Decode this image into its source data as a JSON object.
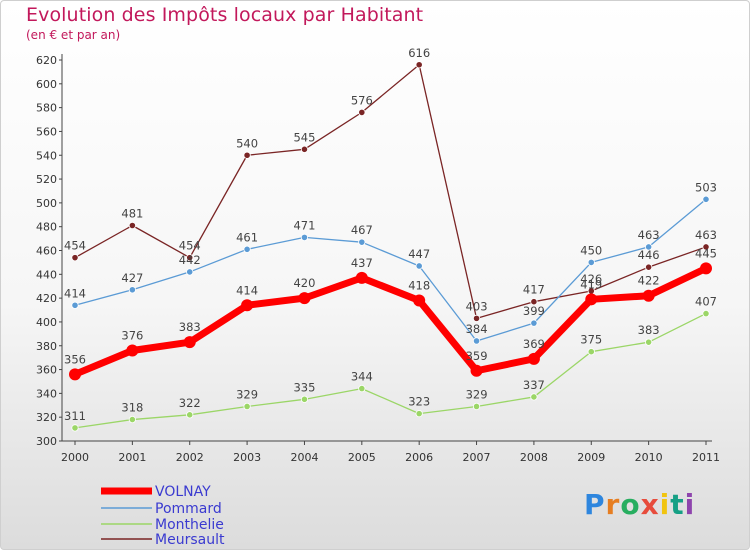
{
  "header": {
    "title": "Evolution des Impôts locaux par Habitant",
    "subtitle": "(en € et par an)"
  },
  "chart_data": {
    "type": "line",
    "x": [
      "2000",
      "2001",
      "2002",
      "2003",
      "2004",
      "2005",
      "2006",
      "2007",
      "2008",
      "2009",
      "2010",
      "2011"
    ],
    "ylim": [
      300,
      620
    ],
    "yticks": [
      300,
      320,
      340,
      360,
      380,
      400,
      420,
      440,
      460,
      480,
      500,
      520,
      540,
      560,
      580,
      600,
      620
    ],
    "grid": false,
    "legend": "bottom-left",
    "series": [
      {
        "name": "VOLNAY",
        "color": "#ff0000",
        "values": [
          356,
          376,
          383,
          414,
          420,
          437,
          418,
          359,
          369,
          419,
          422,
          445
        ],
        "labels": [
          "356",
          "376",
          "383",
          "414",
          "420",
          "437",
          "418",
          "359",
          "369",
          "419",
          "422",
          "445"
        ]
      },
      {
        "name": "Pommard",
        "color": "#5b9bd5",
        "values": [
          414,
          427,
          442,
          461,
          471,
          467,
          447,
          384,
          399,
          450,
          463,
          503
        ],
        "labels": [
          "414",
          "427",
          "442",
          "461",
          "471",
          "467",
          "447",
          "384",
          "399",
          "450",
          "463",
          "503"
        ]
      },
      {
        "name": "Monthelie",
        "color": "#9bd667",
        "values": [
          311,
          318,
          322,
          329,
          335,
          344,
          323,
          329,
          337,
          375,
          383,
          407
        ],
        "labels": [
          "311",
          "318",
          "322",
          "329",
          "335",
          "344",
          "323",
          "329",
          "337",
          "375",
          "383",
          "407"
        ]
      },
      {
        "name": "Meursault",
        "color": "#7a2525",
        "values": [
          454,
          481,
          454,
          540,
          545,
          576,
          616,
          403,
          417,
          426,
          446,
          463
        ],
        "labels": [
          "454",
          "481",
          "454",
          "540",
          "545",
          "576",
          "616",
          "403",
          "417",
          "426",
          "446",
          "463"
        ]
      }
    ]
  },
  "logo": {
    "letters": [
      "P",
      "r",
      "o",
      "x",
      "i",
      "t",
      "i"
    ],
    "colors": [
      "#2e86de",
      "#e67e22",
      "#27ae60",
      "#e74c3c",
      "#f1c40f",
      "#16a085",
      "#8e44ad"
    ]
  }
}
